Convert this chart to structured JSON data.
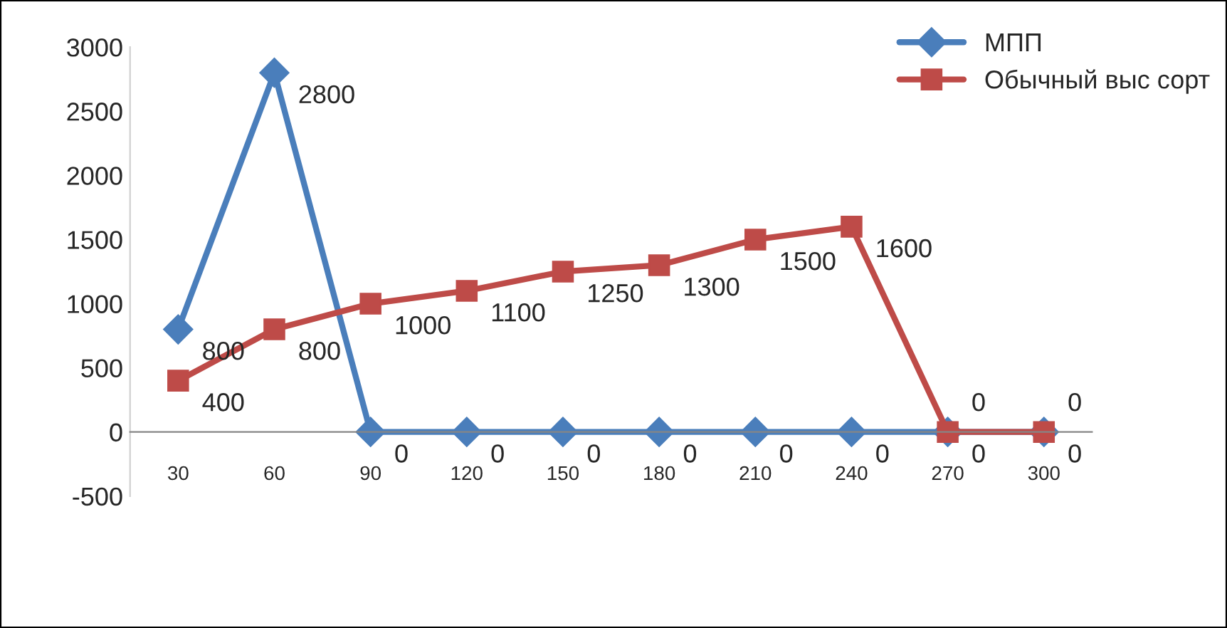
{
  "chart_data": {
    "type": "line",
    "categories": [
      "30",
      "60",
      "90",
      "120",
      "150",
      "180",
      "210",
      "240",
      "270",
      "300"
    ],
    "series": [
      {
        "name": "МПП",
        "color": "#4a7ebb",
        "marker": "diamond",
        "values": [
          800,
          2800,
          0,
          0,
          0,
          0,
          0,
          0,
          0,
          0
        ]
      },
      {
        "name": "Обычный выс сорт",
        "color": "#be4b48",
        "marker": "square",
        "values": [
          400,
          800,
          1000,
          1100,
          1250,
          1300,
          1500,
          1600,
          0,
          0
        ]
      }
    ],
    "ylim": [
      -500,
      3000
    ],
    "yticks": [
      -500,
      0,
      500,
      1000,
      1500,
      2000,
      2500,
      3000
    ],
    "grid": false,
    "legend": "top right",
    "data_labels": true,
    "line_style": "solid"
  }
}
